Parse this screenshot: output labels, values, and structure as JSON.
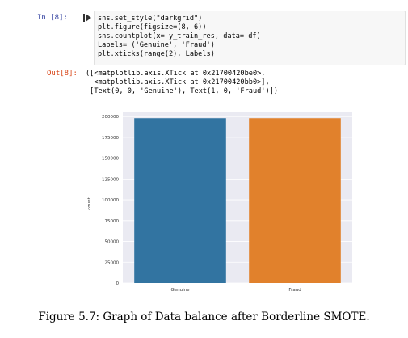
{
  "cell_in": {
    "prompt": "In [8]:",
    "code_lines": [
      "sns.set_style(\"darkgrid\")",
      "plt.figure(figsize=(8, 6))",
      "sns.countplot(x= y_train_res, data= df)",
      "Labels= ('Genuine', 'Fraud')",
      "plt.xticks(range(2), Labels)"
    ]
  },
  "cell_out": {
    "prompt": "Out[8]:",
    "lines": [
      "([<matplotlib.axis.XTick at 0x21700420be0>,",
      "  <matplotlib.axis.XTick at 0x21700420bb0>],",
      " [Text(0, 0, 'Genuine'), Text(1, 0, 'Fraud')])"
    ]
  },
  "chart_data": {
    "type": "bar",
    "categories": [
      "Genuine",
      "Fraud"
    ],
    "values": [
      198000,
      198000
    ],
    "ylabel": "count",
    "xlabel": "",
    "ylim": [
      0,
      206000
    ],
    "yticks": [
      0,
      25000,
      50000,
      75000,
      100000,
      125000,
      150000,
      175000,
      200000
    ],
    "grid": true,
    "colors": [
      "#3274a1",
      "#e1812c"
    ],
    "background": "#eaeaf2"
  },
  "caption": "Figure 5.7: Graph of Data balance after Borderline SMOTE."
}
